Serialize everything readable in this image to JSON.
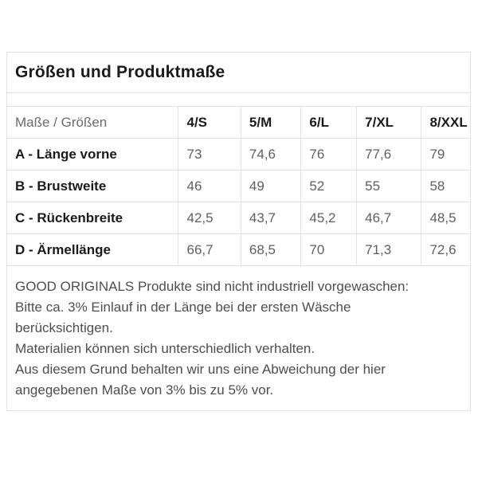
{
  "panel": {
    "title": "Größen und Produktmaße",
    "table": {
      "header": [
        "Maße / Größen",
        "4/S",
        "5/M",
        "6/L",
        "7/XL",
        "8/XXL"
      ],
      "rows": [
        {
          "label": "A - Länge vorne",
          "values": [
            "73",
            "74,6",
            "76",
            "77,6",
            "79"
          ]
        },
        {
          "label": "B - Brustweite",
          "values": [
            "46",
            "49",
            "52",
            "55",
            "58"
          ]
        },
        {
          "label": "C - Rückenbreite",
          "values": [
            "42,5",
            "43,7",
            "45,2",
            "46,7",
            "48,5"
          ]
        },
        {
          "label": "D - Ärmellänge",
          "values": [
            "66,7",
            "68,5",
            "70",
            "71,3",
            "72,6"
          ]
        }
      ]
    },
    "notes": {
      "lines": [
        "GOOD ORIGINALS Produkte sind nicht industriell vorgewaschen:",
        "Bitte ca. 3% Einlauf in der Länge bei der ersten Wäsche",
        "berücksichtigen.",
        "Materialien können sich unterschiedlich verhalten.",
        "Aus diesem Grund behalten wir uns eine Abweichung der hier",
        "angegebenen Maße von 3% bis zu 5% vor."
      ]
    },
    "colors": {
      "border": "#e2e2e2",
      "heading_text": "#1b1b1b",
      "value_text": "#5f5f5f",
      "note_text": "#4e4e4e"
    }
  }
}
